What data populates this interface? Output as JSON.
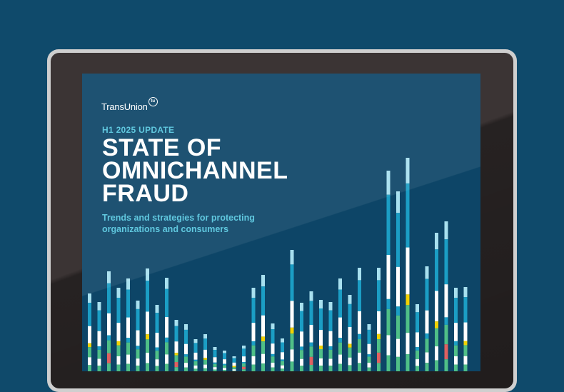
{
  "brand": {
    "name": "TransUnion",
    "mark": "tu"
  },
  "report": {
    "kicker": "H1 2025 UPDATE",
    "title_lines": [
      "STATE OF",
      "OMNICHANNEL",
      "FRAUD"
    ],
    "subtitle_line1": "Trends and strategies for protecting",
    "subtitle_line2": "organizations and consumers"
  },
  "colors": {
    "background": "#0f4a6b",
    "screen": "#0d4567",
    "accent_cyan": "#54c4dd",
    "bar_colors": [
      "#a8e0ef",
      "#1b9ec5",
      "#ffffff",
      "#f2d200",
      "#4fbf87",
      "#e06060"
    ]
  }
}
